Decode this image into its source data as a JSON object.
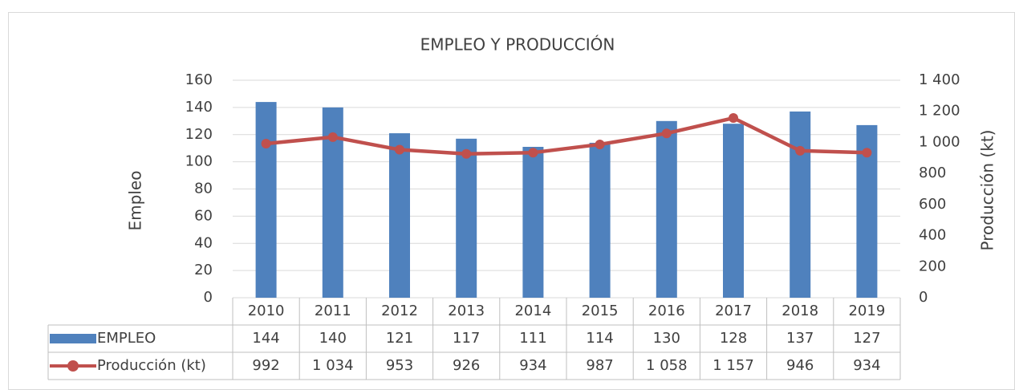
{
  "chart_data": {
    "type": "bar",
    "title": "EMPLEO Y PRODUCCIÓN",
    "y_label": "Empleo",
    "y2_label": "Producción (kt)",
    "categories": [
      "2010",
      "2011",
      "2012",
      "2013",
      "2014",
      "2015",
      "2016",
      "2017",
      "2018",
      "2019"
    ],
    "series": [
      {
        "name": "EMPLEO",
        "type": "bar",
        "color": "#4f81bd",
        "values": [
          144,
          140,
          121,
          117,
          111,
          114,
          130,
          128,
          137,
          127
        ]
      },
      {
        "name": "Producción (kt)",
        "type": "line",
        "axis": "y2",
        "color": "#c0504d",
        "values": [
          992,
          1034,
          953,
          926,
          934,
          987,
          1058,
          1157,
          946,
          934
        ],
        "value_labels": [
          "992",
          "1 034",
          "953",
          "926",
          "934",
          "987",
          "1 058",
          "1 157",
          "946",
          "934"
        ]
      }
    ],
    "ylim": [
      0,
      160
    ],
    "yticks": [
      0,
      20,
      40,
      60,
      80,
      100,
      120,
      140,
      160
    ],
    "y2lim": [
      0,
      1400
    ],
    "y2ticks": [
      0,
      200,
      400,
      600,
      800,
      {
        "value": 1000,
        "label": "1 000"
      },
      {
        "value": 1200,
        "label": "1 200"
      },
      {
        "value": 1400,
        "label": "1 400"
      }
    ],
    "grid": true,
    "legend": "data-table"
  }
}
